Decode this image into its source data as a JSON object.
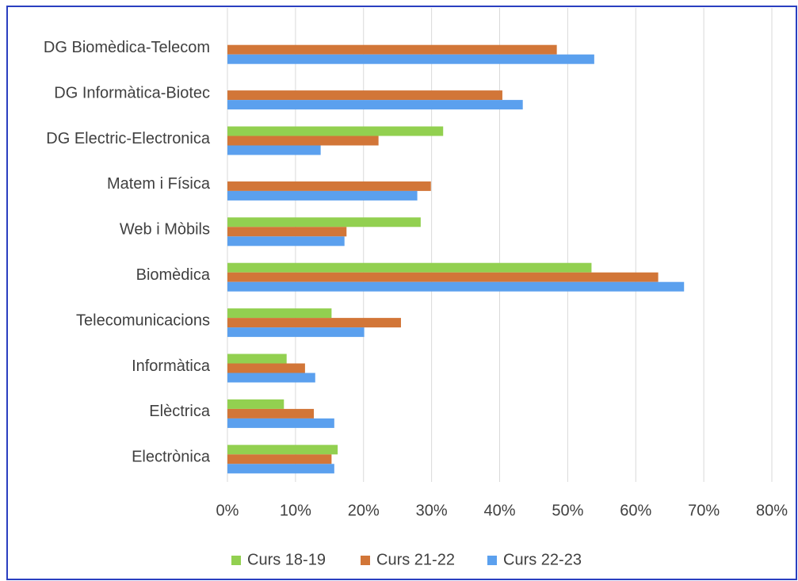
{
  "chart_data": {
    "type": "hbar",
    "categories": [
      "DG Biomèdica-Telecom",
      "DG Informàtica-Biotec",
      "DG Electric-Electronica",
      "Matem i Física",
      "Web i Mòbils",
      "Biomèdica",
      "Telecomunicacions",
      "Informàtica",
      "Elèctrica",
      "Electrònica"
    ],
    "series": [
      {
        "name": "Curs 18-19",
        "color": "#92d050",
        "values": [
          null,
          null,
          31.7,
          null,
          28.4,
          53.5,
          15.3,
          8.7,
          8.3,
          16.2
        ]
      },
      {
        "name": "Curs 21-22",
        "color": "#d27638",
        "values": [
          48.4,
          40.4,
          22.2,
          29.9,
          17.5,
          63.3,
          25.5,
          11.4,
          12.7,
          15.3
        ]
      },
      {
        "name": "Curs 22-23",
        "color": "#5ba0ee",
        "values": [
          53.9,
          43.4,
          13.7,
          27.9,
          17.2,
          67.1,
          20.1,
          12.9,
          15.7,
          15.7
        ]
      }
    ],
    "xlim": [
      0,
      80
    ],
    "xticks": [
      {
        "value": 0,
        "label": "0%"
      },
      {
        "value": 10,
        "label": "10%"
      },
      {
        "value": 20,
        "label": "20%"
      },
      {
        "value": 30,
        "label": "30%"
      },
      {
        "value": 40,
        "label": "40%"
      },
      {
        "value": 50,
        "label": "50%"
      },
      {
        "value": 60,
        "label": "60%"
      },
      {
        "value": 70,
        "label": "70%"
      },
      {
        "value": 80,
        "label": "80%"
      }
    ],
    "grid": true,
    "legend": "bottom"
  }
}
